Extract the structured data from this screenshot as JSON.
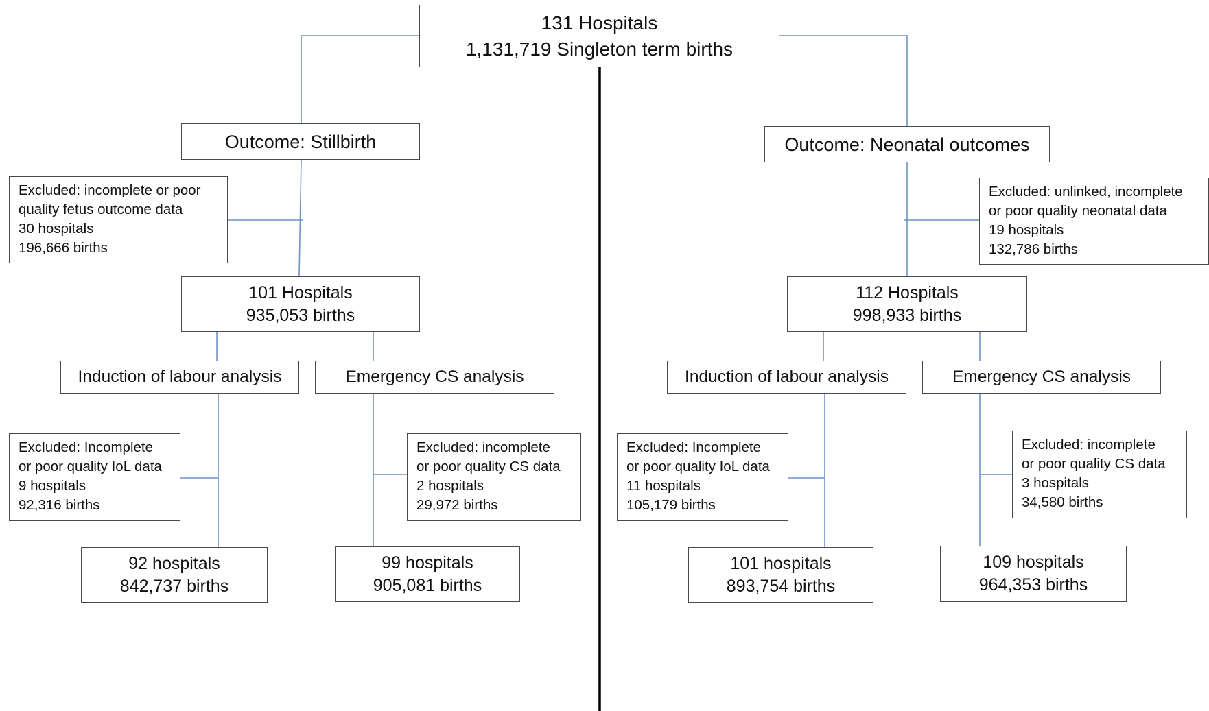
{
  "root": {
    "line1": "131 Hospitals",
    "line2": "1,131,719 Singleton term births"
  },
  "stillbirth": {
    "outcome": "Outcome: Stillbirth",
    "excluded": [
      "Excluded: incomplete or poor",
      "quality fetus outcome data",
      "30 hospitals",
      "196,666 births"
    ],
    "included": {
      "line1": "101 Hospitals",
      "line2": "935,053 births"
    },
    "iol": {
      "title": "Induction of labour analysis",
      "excluded": [
        "Excluded: Incomplete",
        "or poor quality IoL data",
        "9 hospitals",
        "92,316 births"
      ],
      "final": {
        "line1": "92 hospitals",
        "line2": "842,737 births"
      }
    },
    "cs": {
      "title": "Emergency CS analysis",
      "excluded": [
        "Excluded: incomplete",
        "or poor quality CS data",
        "2 hospitals",
        "29,972 births"
      ],
      "final": {
        "line1": "99 hospitals",
        "line2": "905,081 births"
      }
    }
  },
  "neonatal": {
    "outcome": "Outcome: Neonatal outcomes",
    "excluded": [
      "Excluded: unlinked, incomplete",
      "or poor quality neonatal data",
      "19 hospitals",
      "132,786 births"
    ],
    "included": {
      "line1": "112 Hospitals",
      "line2": "998,933 births"
    },
    "iol": {
      "title": "Induction of labour analysis",
      "excluded": [
        "Excluded: Incomplete",
        "or poor quality IoL data",
        "11 hospitals",
        "105,179 births"
      ],
      "final": {
        "line1": "101 hospitals",
        "line2": "893,754 births"
      }
    },
    "cs": {
      "title": "Emergency CS analysis",
      "excluded": [
        "Excluded: incomplete",
        "or poor quality CS data",
        "3 hospitals",
        "34,580 births"
      ],
      "final": {
        "line1": "109 hospitals",
        "line2": "964,353 births"
      }
    }
  }
}
